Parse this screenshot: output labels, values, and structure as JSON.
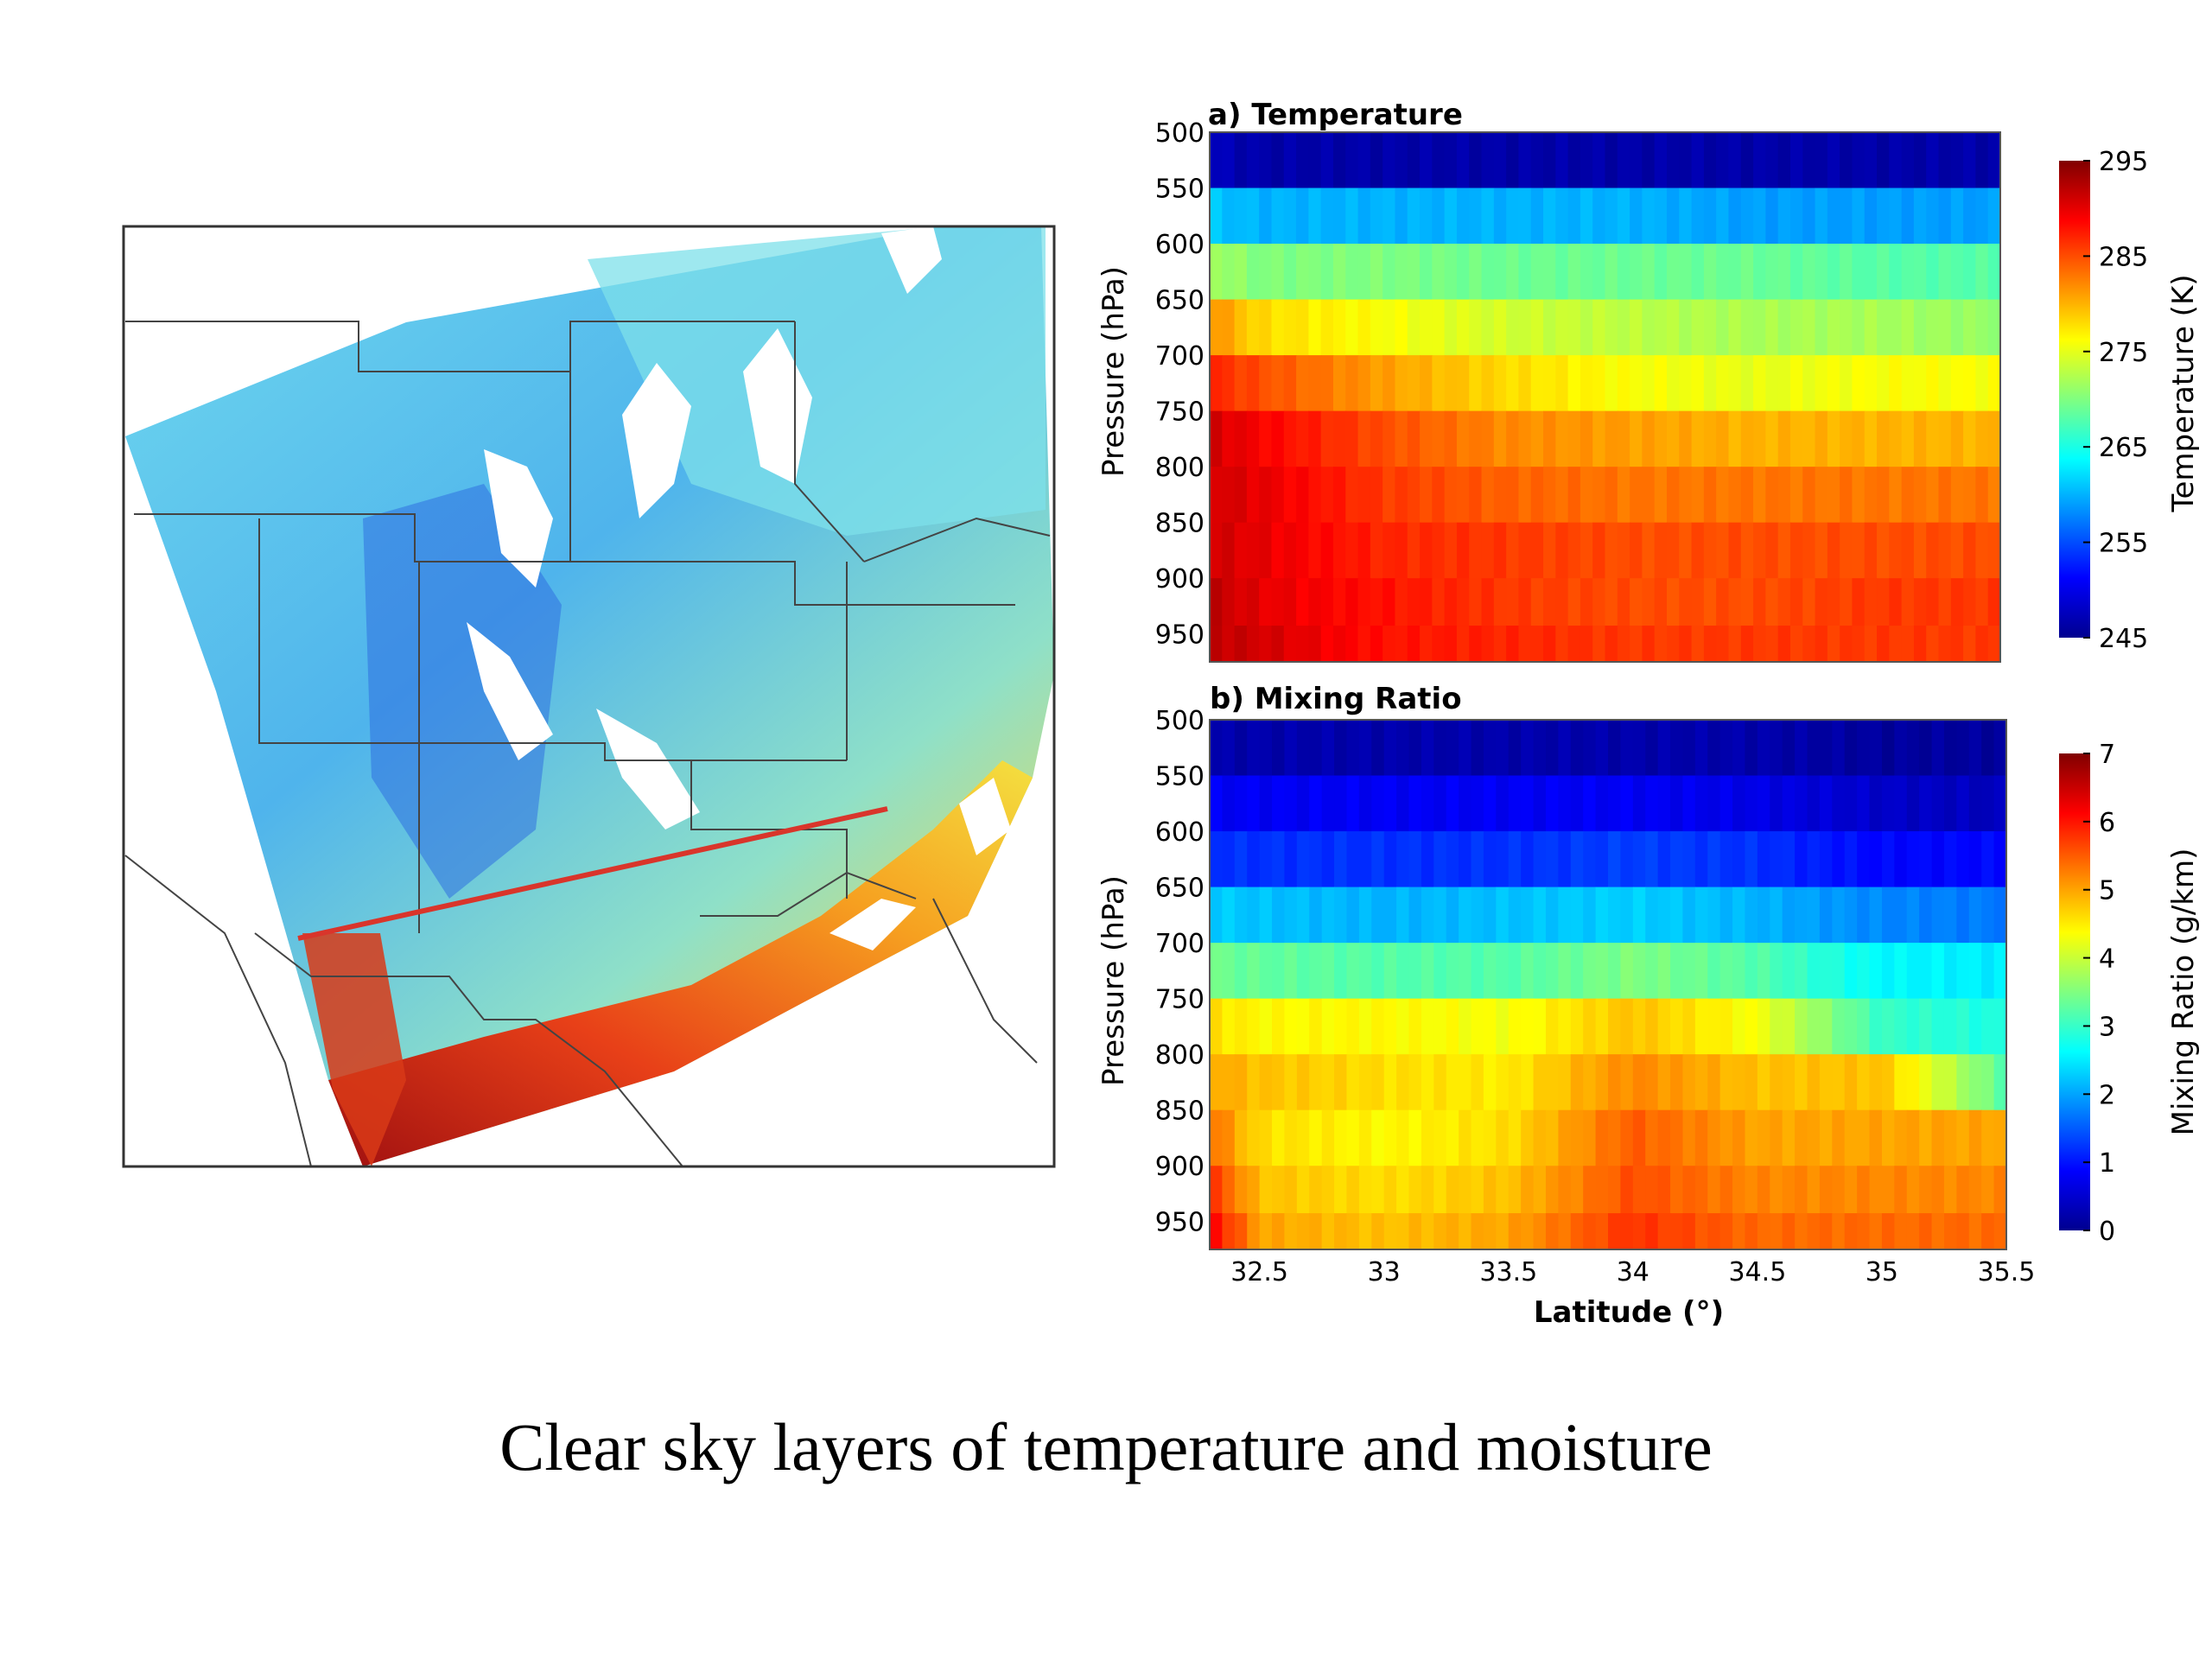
{
  "caption": "Clear sky layers of temperature and moisture",
  "map": {
    "description_colors": {
      "background": "#ffffff",
      "border": "#333333",
      "transect": "#d9352b"
    },
    "transect": {
      "from_lat": 32.3,
      "to_lat": 35.5
    }
  },
  "chart_data": [
    {
      "type": "heatmap",
      "title": "a) Temperature",
      "xlabel": "",
      "ylabel": "Pressure (hPa)",
      "x": [
        32.3,
        32.5,
        33.0,
        33.5,
        34.0,
        34.5,
        35.0,
        35.5
      ],
      "xlim": [
        32.3,
        35.5
      ],
      "ylim": [
        500,
        975
      ],
      "y_ticks": [
        "500",
        "550",
        "600",
        "650",
        "700",
        "750",
        "800",
        "850",
        "900",
        "950"
      ],
      "pressure_levels": [
        525,
        575,
        625,
        675,
        725,
        775,
        825,
        875,
        925,
        960
      ],
      "values": [
        [
          248,
          247,
          247,
          247,
          247,
          247,
          247,
          247
        ],
        [
          261,
          260,
          260,
          260,
          260,
          259,
          259,
          259
        ],
        [
          272,
          270,
          270,
          269,
          269,
          269,
          268,
          268
        ],
        [
          282,
          278,
          276,
          274,
          273,
          272,
          272,
          271
        ],
        [
          287,
          285,
          281,
          278,
          276,
          275,
          276,
          276
        ],
        [
          291,
          289,
          285,
          282,
          281,
          280,
          280,
          280
        ],
        [
          291,
          290,
          286,
          284,
          283,
          283,
          283,
          283
        ],
        [
          291,
          290,
          287,
          286,
          285,
          285,
          285,
          285
        ],
        [
          292,
          290,
          288,
          286,
          285,
          285,
          286,
          286
        ],
        [
          292,
          291,
          288,
          287,
          286,
          286,
          286,
          286
        ]
      ],
      "colorbar": {
        "label": "Temperature (K)",
        "ticks": [
          "245",
          "255",
          "265",
          "275",
          "285",
          "295"
        ],
        "min": 245,
        "max": 295
      }
    },
    {
      "type": "heatmap",
      "title": "b) Mixing Ratio",
      "xlabel": "Latitude (°)",
      "ylabel": "Pressure (hPa)",
      "x": [
        32.3,
        32.5,
        33.0,
        33.5,
        34.0,
        34.5,
        35.0,
        35.5
      ],
      "x_ticks": [
        "32.5",
        "33",
        "33.5",
        "34",
        "34.5",
        "35",
        "35.5"
      ],
      "xlim": [
        32.3,
        35.5
      ],
      "ylim": [
        500,
        975
      ],
      "y_ticks": [
        "500",
        "550",
        "600",
        "650",
        "700",
        "750",
        "800",
        "850",
        "900",
        "950"
      ],
      "pressure_levels": [
        525,
        575,
        625,
        675,
        725,
        775,
        825,
        875,
        925,
        960
      ],
      "values": [
        [
          0.3,
          0.3,
          0.3,
          0.3,
          0.3,
          0.3,
          0.2,
          0.2
        ],
        [
          0.8,
          0.8,
          0.8,
          0.8,
          0.8,
          0.7,
          0.5,
          0.4
        ],
        [
          1.2,
          1.2,
          1.2,
          1.2,
          1.3,
          1.2,
          0.9,
          0.9
        ],
        [
          2.3,
          2.2,
          2.1,
          2.2,
          2.3,
          2.1,
          1.8,
          1.7
        ],
        [
          3.4,
          3.3,
          3.2,
          3.2,
          3.5,
          3.2,
          2.6,
          2.5
        ],
        [
          4.6,
          4.4,
          4.4,
          4.3,
          4.8,
          4.3,
          3.0,
          2.8
        ],
        [
          5.0,
          4.8,
          4.6,
          4.5,
          5.2,
          4.8,
          4.8,
          3.2
        ],
        [
          5.4,
          4.6,
          4.4,
          4.6,
          5.5,
          5.0,
          5.0,
          5.0
        ],
        [
          5.8,
          4.8,
          4.6,
          4.8,
          5.6,
          5.2,
          5.2,
          5.2
        ],
        [
          6.2,
          5.0,
          4.8,
          5.0,
          5.8,
          5.4,
          5.4,
          5.4
        ]
      ],
      "colorbar": {
        "label": "Mixing Ratio (g/km)",
        "ticks": [
          "0",
          "1",
          "2",
          "3",
          "4",
          "5",
          "6",
          "7"
        ],
        "min": 0,
        "max": 7
      }
    }
  ]
}
